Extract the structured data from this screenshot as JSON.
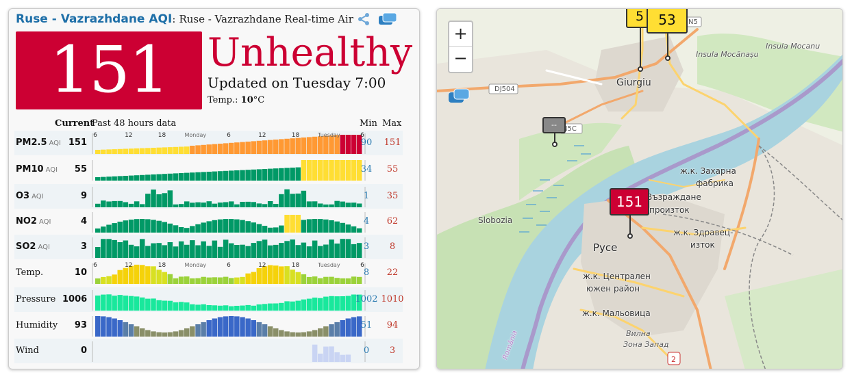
{
  "header": {
    "city": "Ruse - Vazrazhdane AQI",
    "colon": ":",
    "subtitle": "Ruse - Vazrazhdane Real-time Air"
  },
  "aqi": {
    "value": "151",
    "level": "Unhealthy",
    "updated": "Updated on Tuesday 7:00",
    "temp_label": "Temp.:",
    "temp_value": "10",
    "temp_unit": "°C",
    "color": "#cc0033"
  },
  "table": {
    "current_header": "Current",
    "history_header": "Past 48 hours data",
    "min_header": "Min",
    "max_header": "Max",
    "time_ticks": [
      "6",
      "12",
      "18",
      "Monday",
      "6",
      "12",
      "18",
      "Tuesday",
      "6"
    ],
    "rows": [
      {
        "label": "PM2.5",
        "unit": "AQI",
        "current": "151",
        "min": "90",
        "max": "151"
      },
      {
        "label": "PM10",
        "unit": "AQI",
        "current": "55",
        "min": "34",
        "max": "55"
      },
      {
        "label": "O3",
        "unit": "AQI",
        "current": "9",
        "min": "1",
        "max": "35"
      },
      {
        "label": "NO2",
        "unit": "AQI",
        "current": "4",
        "min": "4",
        "max": "62"
      },
      {
        "label": "SO2",
        "unit": "AQI",
        "current": "3",
        "min": "3",
        "max": "8"
      },
      {
        "label": "Temp.",
        "unit": "",
        "current": "10",
        "min": "8",
        "max": "22"
      },
      {
        "label": "Pressure",
        "unit": "",
        "current": "1006",
        "min": "1002",
        "max": "1010"
      },
      {
        "label": "Humidity",
        "unit": "",
        "current": "93",
        "min": "51",
        "max": "94"
      },
      {
        "label": "Wind",
        "unit": "",
        "current": "0",
        "min": "0",
        "max": "3"
      }
    ]
  },
  "map": {
    "zoom_in": "+",
    "zoom_out": "−",
    "markers": [
      {
        "value": "5",
        "color": "#ffde33"
      },
      {
        "value": "53",
        "color": "#ffde33"
      },
      {
        "value": "151",
        "color": "#cc0033"
      },
      {
        "value": "--",
        "color": "#888888"
      }
    ],
    "labels": [
      "Giurgiu",
      "Insula Mocănașu",
      "Insula Mocanu",
      "DJ504",
      "N5C",
      "N5",
      "Slobozia",
      "ж.к. Захарна",
      "фабрика",
      "Възраждане",
      "произток",
      "ж.к. Здравец-",
      "изток",
      "Русе",
      "ж.к. Централен",
      "южен район",
      "ж.к. Мальовица",
      "Вилна",
      "Зона Запад",
      "România",
      "2"
    ]
  }
}
